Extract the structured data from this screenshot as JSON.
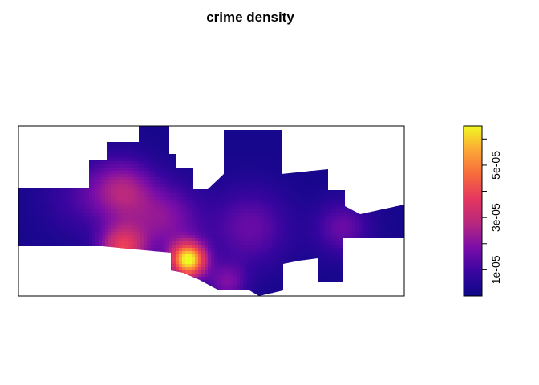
{
  "chart_data": {
    "type": "heatmap",
    "title": "crime density",
    "xlabel": "",
    "ylabel": "",
    "axes_ticks": false,
    "colorscale": {
      "name": "plasma-like",
      "stops": [
        "#0d0887",
        "#3a05a0",
        "#7a0da8",
        "#b8287e",
        "#e5365f",
        "#f76a3c",
        "#fca636",
        "#f0f921"
      ],
      "min": 0,
      "max": 6.5e-05
    },
    "colorbar": {
      "ticks": [
        1e-05,
        3e-05,
        5e-05
      ],
      "tick_labels": [
        "1e-05",
        "3e-05",
        "5e-05"
      ],
      "minor_ticks": [
        2e-05,
        4e-05,
        6e-05
      ]
    },
    "hotspots": [
      {
        "x": 0.44,
        "y": 0.79,
        "value": 6.4e-05
      },
      {
        "x": 0.27,
        "y": 0.72,
        "value": 3.6e-05
      },
      {
        "x": 0.27,
        "y": 0.38,
        "value": 2.4e-05
      },
      {
        "x": 0.38,
        "y": 0.55,
        "value": 2e-05
      },
      {
        "x": 0.6,
        "y": 0.6,
        "value": 1.6e-05
      },
      {
        "x": 0.54,
        "y": 0.92,
        "value": 1.8e-05
      },
      {
        "x": 0.84,
        "y": 0.6,
        "value": 1.6e-05
      },
      {
        "x": 0.16,
        "y": 0.42,
        "value": 1e-05
      }
    ],
    "background_value": 2e-06
  }
}
